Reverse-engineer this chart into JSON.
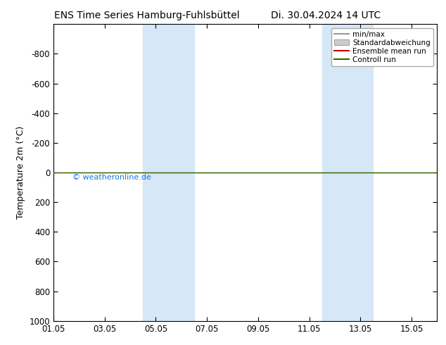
{
  "title_left": "ENS Time Series Hamburg-Fuhlsbüttel",
  "title_right": "Di. 30.04.2024 14 UTC",
  "ylabel": "Temperature 2m (°C)",
  "ylim_top": -1000,
  "ylim_bottom": 1000,
  "yticks": [
    -800,
    -600,
    -400,
    -200,
    0,
    200,
    400,
    600,
    800,
    1000
  ],
  "xtick_labels": [
    "01.05",
    "03.05",
    "05.05",
    "07.05",
    "09.05",
    "11.05",
    "13.05",
    "15.05"
  ],
  "xtick_positions": [
    0,
    2,
    4,
    6,
    8,
    10,
    12,
    14
  ],
  "xlim": [
    0,
    15
  ],
  "watermark": "© weatheronline.de",
  "watermark_color": "#1a73e8",
  "background_color": "#ffffff",
  "shaded_bands": [
    {
      "xstart": 3.5,
      "xend": 5.5
    },
    {
      "xstart": 10.5,
      "xend": 12.5
    }
  ],
  "shade_color": "#d6e8f7",
  "control_run_y": 0,
  "control_run_color": "#336600",
  "ensemble_mean_color": "#cc0000",
  "minmax_line_color": "#999999",
  "std_fill_color": "#cccccc",
  "legend_entries": [
    "min/max",
    "Standardabweichung",
    "Ensemble mean run",
    "Controll run"
  ],
  "legend_colors": [
    "#999999",
    "#cccccc",
    "#cc0000",
    "#336600"
  ],
  "figsize": [
    6.34,
    4.9
  ],
  "dpi": 100
}
